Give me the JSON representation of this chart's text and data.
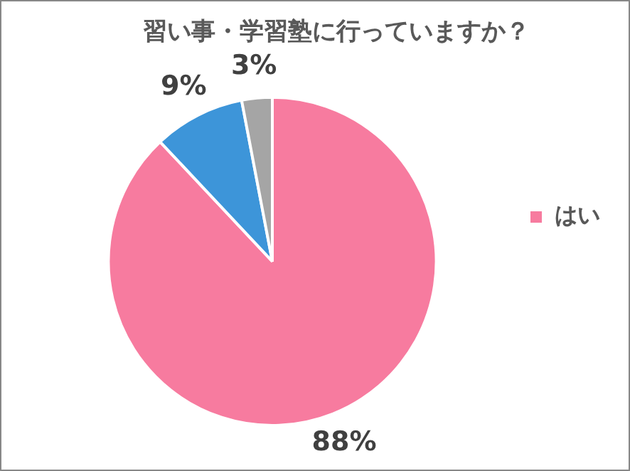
{
  "chart_data": {
    "type": "pie",
    "title": "習い事・学習塾に行っていますか？",
    "categories": [
      "はい",
      null,
      null
    ],
    "values": [
      88,
      9,
      3
    ],
    "colors": [
      "#f77b9f",
      "#3d95d9",
      "#a5a5a5"
    ],
    "value_labels": [
      "88%",
      "9%",
      "3%"
    ],
    "legend": "right"
  }
}
